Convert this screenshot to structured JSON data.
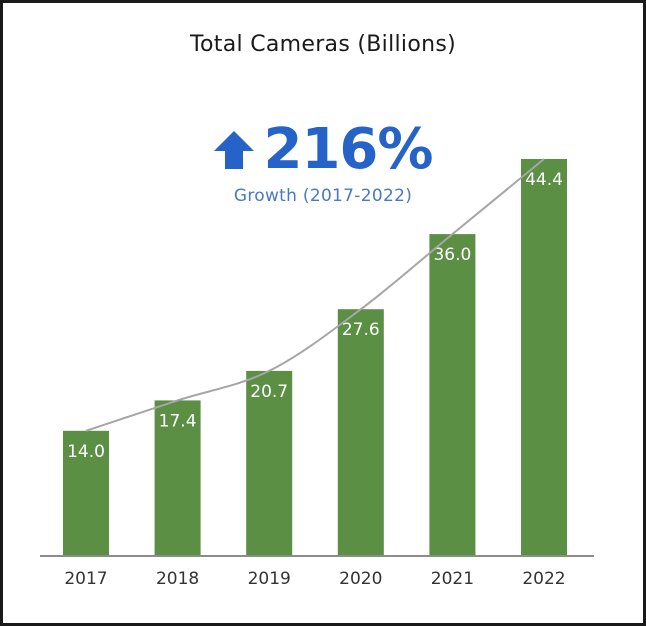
{
  "chart_data": {
    "type": "bar",
    "title": "Total Cameras (Billions)",
    "categories": [
      "2017",
      "2018",
      "2019",
      "2020",
      "2021",
      "2022"
    ],
    "values": [
      14.0,
      17.4,
      20.7,
      27.6,
      36.0,
      44.4
    ],
    "value_labels": [
      "14.0",
      "17.4",
      "20.7",
      "27.6",
      "36.0",
      "44.4"
    ],
    "ylim": [
      0,
      44.4
    ],
    "xlabel": "",
    "ylabel": "",
    "grid": false,
    "legend": "none",
    "trendline": true,
    "bar_color": "#5a8f44",
    "trendline_color": "#a6a6a6",
    "axis_color": "#8c8c8c"
  },
  "highlight": {
    "value": "216%",
    "caption": "Growth (2017-2022)",
    "icon": "up-arrow-icon",
    "color": "#2563c9"
  }
}
